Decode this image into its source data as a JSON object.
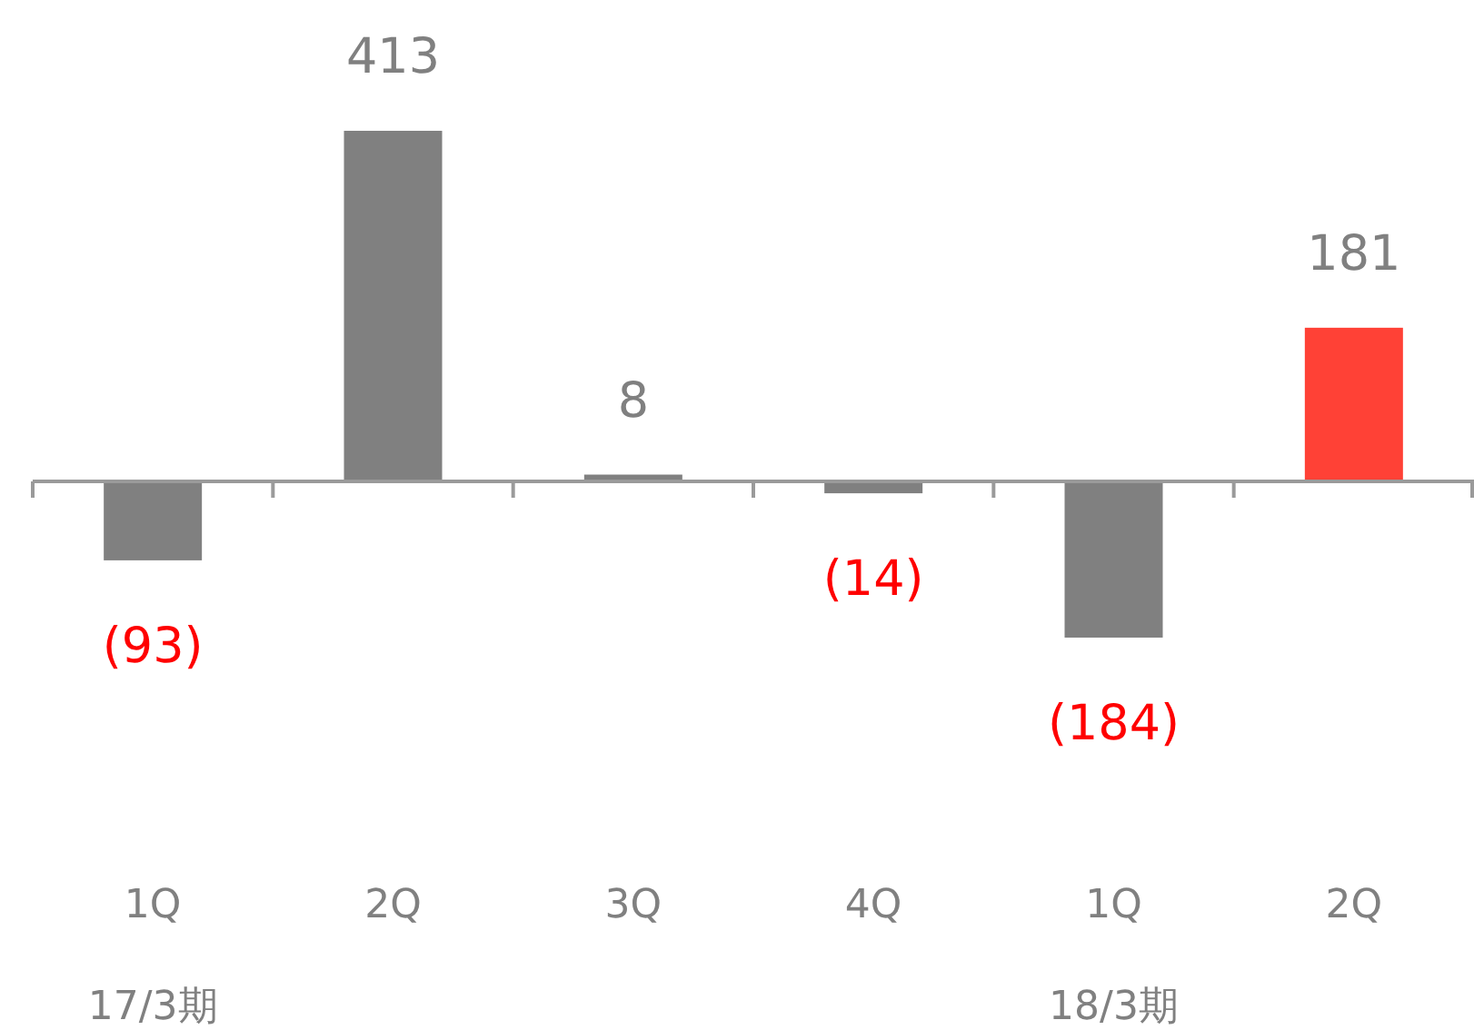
{
  "chart_data": {
    "type": "bar",
    "categories": [
      "1Q",
      "2Q",
      "3Q",
      "4Q",
      "1Q",
      "2Q"
    ],
    "values": [
      -93,
      413,
      8,
      -14,
      -184,
      181
    ],
    "colors": [
      "#808080",
      "#808080",
      "#808080",
      "#808080",
      "#808080",
      "#ff4136"
    ],
    "value_labels": [
      "(93)",
      "413",
      "8",
      "(14)",
      "(184)",
      "181"
    ],
    "annotations": [
      "17/3期",
      "18/3期"
    ]
  }
}
